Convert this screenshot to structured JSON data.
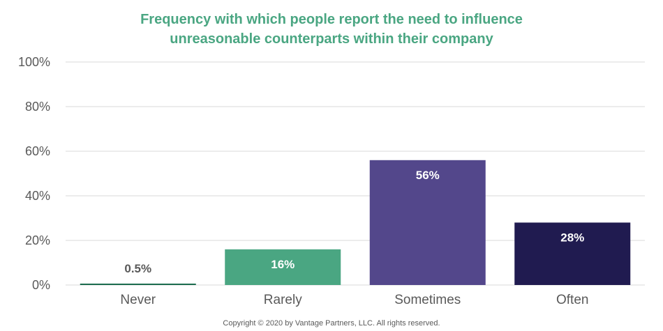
{
  "chart_data": {
    "type": "bar",
    "title_lines": [
      "Frequency with which people report the need to influence",
      "unreasonable counterparts within their company"
    ],
    "categories": [
      "Never",
      "Rarely",
      "Sometimes",
      "Often"
    ],
    "values": [
      0.5,
      16,
      56,
      28
    ],
    "data_labels": [
      "0.5%",
      "16%",
      "56%",
      "28%"
    ],
    "bar_colors": [
      "#1b6b4e",
      "#4aa682",
      "#53478b",
      "#201b50"
    ],
    "label_colors": [
      "#595959",
      "#ffffff",
      "#ffffff",
      "#ffffff"
    ],
    "label_inside": [
      false,
      true,
      true,
      true
    ],
    "ylim": [
      0,
      100
    ],
    "yticks": [
      0,
      20,
      40,
      60,
      80,
      100
    ],
    "ytick_labels": [
      "0%",
      "20%",
      "40%",
      "60%",
      "80%",
      "100%"
    ],
    "grid": true,
    "xlabel": "",
    "ylabel": ""
  },
  "colors": {
    "title": "#4aa682",
    "gridline": "#d9d9d9",
    "axis_text": "#595959"
  },
  "footer": {
    "copyright": "Copyright © 2020 by Vantage Partners, LLC. All rights reserved."
  }
}
